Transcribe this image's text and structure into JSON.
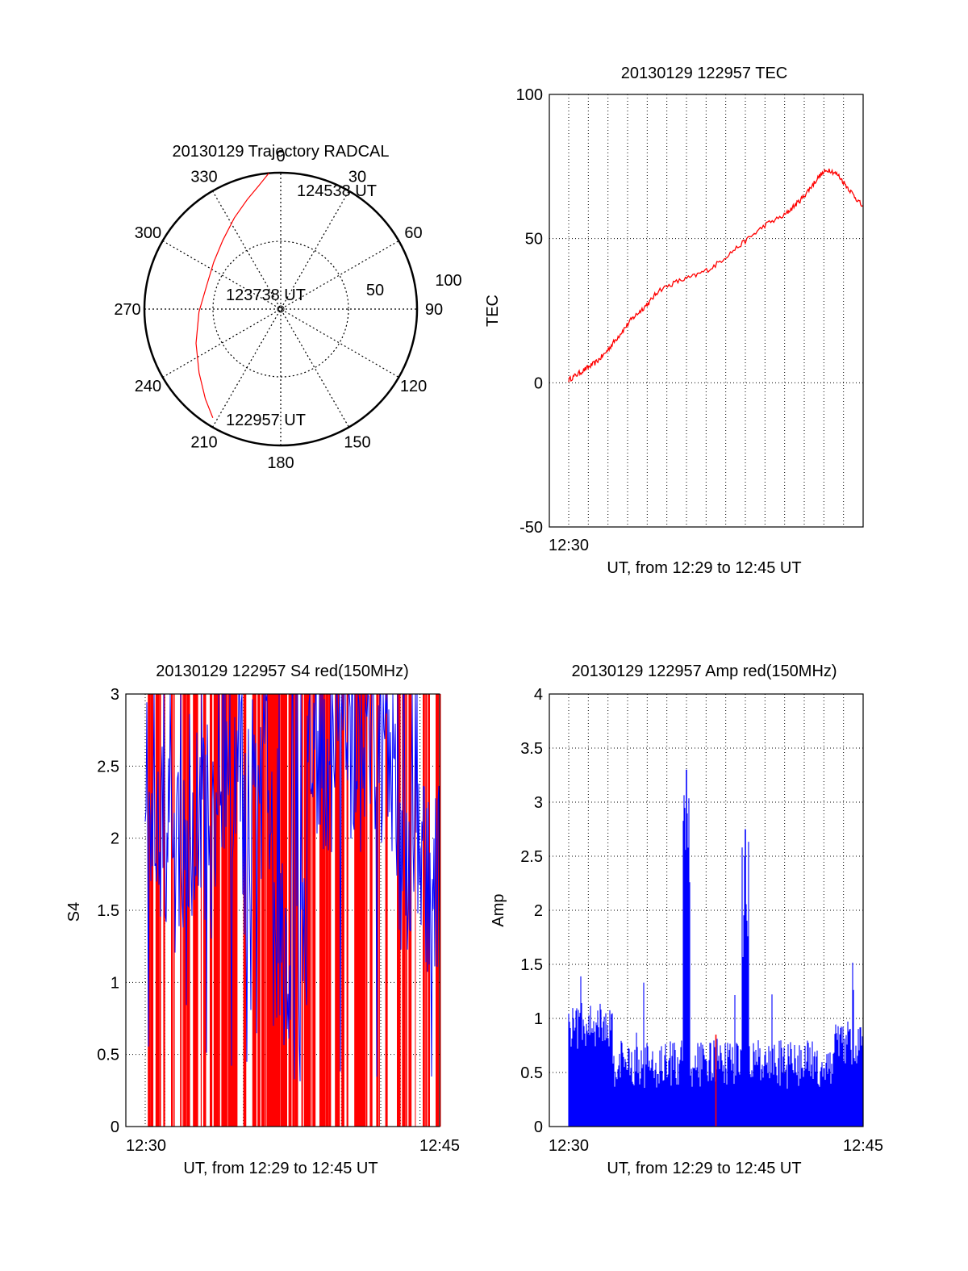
{
  "colors": {
    "red": "#ff0000",
    "blue": "#0000ff",
    "axis": "#000000",
    "grid": "#000000"
  },
  "chart_data": [
    {
      "type": "polar",
      "title": "20130129 Trajectory RADCAL",
      "azimuth_labels": [
        "0",
        "30",
        "60",
        "90",
        "120",
        "150",
        "180",
        "210",
        "240",
        "270",
        "300",
        "330"
      ],
      "radial_labels": [
        "50",
        "100"
      ],
      "zenith_range": [
        0,
        100
      ],
      "grid": true,
      "trajectory": {
        "points": [
          {
            "az": 212,
            "zen": 94
          },
          {
            "az": 220,
            "zen": 86
          },
          {
            "az": 232,
            "zen": 76
          },
          {
            "az": 248,
            "zen": 67
          },
          {
            "az": 268,
            "zen": 60
          },
          {
            "az": 288,
            "zen": 57
          },
          {
            "az": 305,
            "zen": 60
          },
          {
            "az": 320,
            "zen": 66
          },
          {
            "az": 333,
            "zen": 75
          },
          {
            "az": 343,
            "zen": 84
          },
          {
            "az": 350,
            "zen": 92
          },
          {
            "az": 355,
            "zen": 100
          }
        ],
        "labels": [
          "122957 UT",
          "123738 UT",
          "124538 UT"
        ]
      }
    },
    {
      "type": "line",
      "title": "20130129 122957 TEC",
      "xlabel": "UT, from 12:29 to 12:45 UT",
      "ylabel": "TEC",
      "x_tick_labels": [
        "12:30"
      ],
      "ylim": [
        -50,
        100
      ],
      "yticks": [
        -50,
        0,
        50,
        100
      ],
      "grid": true,
      "series": [
        {
          "color": "red",
          "x": [
            12.5,
            12.55,
            12.6,
            12.65,
            12.7,
            12.75,
            12.8,
            12.85,
            12.9,
            12.95,
            13.0,
            13.1,
            13.2,
            13.3,
            13.4,
            13.5,
            13.6,
            13.7,
            13.75,
            13.8,
            13.85,
            13.9,
            13.95,
            14.0,
            14.05,
            14.1,
            14.15,
            14.2,
            14.25,
            14.3
          ],
          "y": [
            1,
            3,
            5,
            7,
            10,
            14,
            18,
            22,
            25,
            28,
            32,
            35,
            37,
            40,
            45,
            50,
            55,
            58,
            61,
            64,
            68,
            72,
            74,
            72,
            68,
            64,
            60,
            57,
            56,
            55
          ]
        }
      ],
      "x_range": [
        12.5,
        14.5
      ]
    },
    {
      "type": "bar",
      "title": "20130129 122957 S4 red(150MHz)",
      "xlabel": "UT, from 12:29 to 12:45 UT",
      "ylabel": "S4",
      "x_tick_labels": [
        "12:30",
        "12:45"
      ],
      "ylim": [
        0,
        3
      ],
      "yticks": [
        0,
        0.5,
        1,
        1.5,
        2,
        2.5,
        3
      ],
      "grid": true
    },
    {
      "type": "bar",
      "title": "20130129 122957 Amp red(150MHz)",
      "xlabel": "UT, from 12:29 to 12:45 UT",
      "ylabel": "Amp",
      "x_tick_labels": [
        "12:30",
        "12:45"
      ],
      "ylim": [
        0,
        4
      ],
      "yticks": [
        0,
        0.5,
        1,
        1.5,
        2,
        2.5,
        3,
        3.5,
        4
      ],
      "grid": true,
      "peaks": [
        {
          "x_fraction": 0.4,
          "value": 3.3,
          "color": "blue"
        },
        {
          "x_fraction": 0.6,
          "value": 2.75,
          "color": "blue"
        },
        {
          "x_fraction": 0.5,
          "value": 0.85,
          "color": "red"
        }
      ]
    }
  ]
}
